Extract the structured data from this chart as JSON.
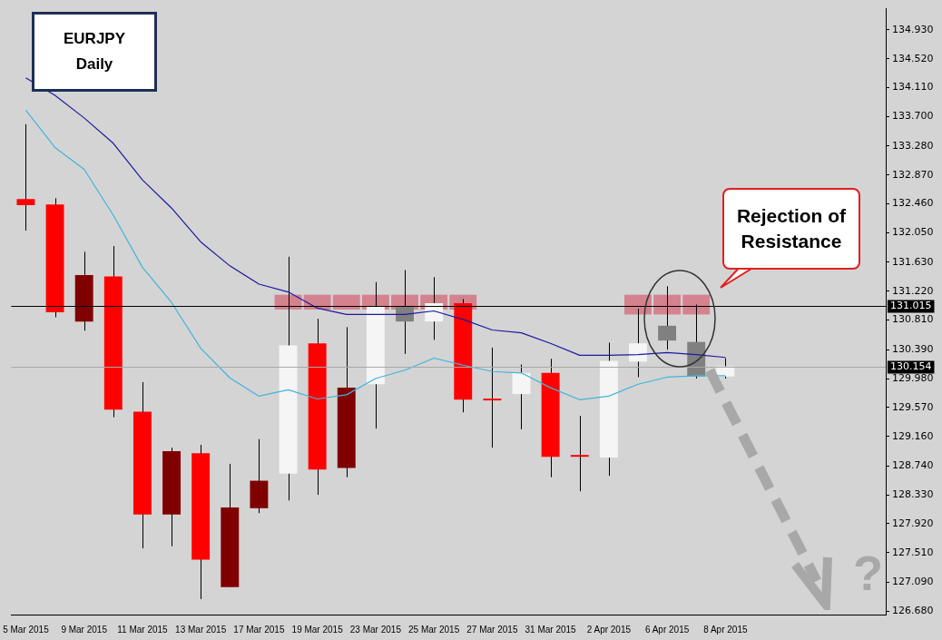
{
  "chart_data": {
    "type": "candlestick",
    "title": "EURJPY",
    "subtitle": "Daily",
    "categories": [
      "5 Mar 2015",
      null,
      "9 Mar 2015",
      null,
      "11 Mar 2015",
      null,
      "13 Mar 2015",
      null,
      "17 Mar 2015",
      null,
      "19 Mar 2015",
      null,
      "23 Mar 2015",
      null,
      "25 Mar 2015",
      null,
      "27 Mar 2015",
      null,
      "31 Mar 2015",
      null,
      "2 Apr 2015",
      null,
      "6 Apr 2015",
      null,
      "8 Apr 2015",
      null,
      null,
      null,
      null,
      null
    ],
    "ohlc": [
      [
        132.53,
        133.59,
        132.08,
        132.44
      ],
      [
        132.45,
        132.54,
        130.85,
        130.92
      ],
      [
        130.79,
        131.78,
        130.66,
        131.45
      ],
      [
        131.43,
        131.86,
        129.43,
        129.54
      ],
      [
        129.51,
        129.93,
        127.57,
        128.05
      ],
      [
        128.05,
        129.0,
        127.6,
        128.95
      ],
      [
        128.92,
        129.04,
        126.85,
        127.41
      ],
      [
        127.02,
        128.77,
        127.02,
        128.15
      ],
      [
        128.14,
        129.12,
        128.07,
        128.53
      ],
      [
        128.63,
        131.71,
        128.25,
        130.45
      ],
      [
        130.48,
        130.83,
        128.33,
        128.69
      ],
      [
        128.71,
        130.71,
        128.58,
        129.85
      ],
      [
        129.9,
        131.35,
        129.27,
        131.0
      ],
      [
        131.01,
        131.52,
        130.33,
        130.79
      ],
      [
        130.79,
        131.42,
        130.53,
        131.05
      ],
      [
        131.05,
        131.11,
        129.5,
        129.68
      ],
      [
        129.69,
        130.42,
        129.0,
        129.67
      ],
      [
        129.76,
        130.18,
        129.26,
        130.06
      ],
      [
        130.06,
        130.26,
        128.58,
        128.87
      ],
      [
        128.88,
        129.45,
        128.38,
        128.87
      ],
      [
        128.86,
        130.49,
        128.6,
        130.23
      ],
      [
        130.22,
        130.97,
        130.0,
        130.48
      ],
      [
        130.73,
        131.29,
        130.39,
        130.52
      ],
      [
        130.5,
        131.03,
        129.98,
        130.01
      ],
      [
        130.01,
        130.27,
        129.98,
        130.154
      ],
      null,
      null,
      null,
      null,
      null
    ],
    "colors": [
      "#ff0000",
      "#ff0000",
      "#800000",
      "#ff0000",
      "#ff0000",
      "#800000",
      "#ff0000",
      "#800000",
      "#800000",
      "#f5f5f5",
      "#ff0000",
      "#800000",
      "#f5f5f5",
      "#808080",
      "#f5f5f5",
      "#ff0000",
      "#ff0000",
      "#f5f5f5",
      "#ff0000",
      "#ff0000",
      "#f5f5f5",
      "#f5f5f5",
      "#808080",
      "#808080",
      "#f5f5f5",
      null,
      null,
      null,
      null,
      null
    ],
    "series": [
      {
        "type": "line",
        "color": "#1a1aa0",
        "values": [
          134.25,
          134.0,
          133.68,
          133.32,
          132.8,
          132.4,
          131.92,
          131.58,
          131.32,
          131.21,
          130.98,
          130.89,
          130.89,
          130.89,
          130.94,
          130.82,
          130.67,
          130.63,
          130.48,
          130.31,
          130.31,
          130.32,
          130.35,
          130.32,
          130.28,
          null,
          null,
          null,
          null,
          null
        ]
      },
      {
        "type": "line",
        "color": "#40b4dc",
        "values": [
          133.79,
          133.26,
          132.95,
          132.3,
          131.56,
          131.06,
          130.41,
          129.99,
          129.73,
          129.82,
          129.69,
          129.75,
          129.98,
          130.1,
          130.27,
          130.17,
          130.08,
          130.06,
          129.85,
          129.68,
          129.73,
          129.9,
          130.0,
          130.02,
          130.02,
          null,
          null,
          null,
          null,
          null
        ]
      },
      {
        "type": "bar",
        "color": "#d4828e",
        "values": [
          null,
          null,
          null,
          null,
          null,
          null,
          null,
          null,
          null,
          0.21,
          0.21,
          0.21,
          0.21,
          0.21,
          0.21,
          0.21,
          null,
          null,
          null,
          null,
          null,
          0.28,
          0.28,
          0.28,
          null,
          null,
          null,
          null,
          null,
          null
        ],
        "base": [
          null,
          null,
          null,
          null,
          null,
          null,
          null,
          null,
          null,
          130.96,
          130.96,
          130.96,
          130.96,
          130.96,
          130.96,
          130.96,
          null,
          null,
          null,
          null,
          null,
          130.89,
          130.89,
          130.89,
          null,
          null,
          null,
          null,
          null,
          null
        ]
      }
    ],
    "ylim": [
      126.63,
      135.23
    ],
    "yticks": [
      {
        "value": 134.93,
        "label": "134.930"
      },
      {
        "value": 134.52,
        "label": "134.520"
      },
      {
        "value": 134.11,
        "label": "134.110"
      },
      {
        "value": 133.7,
        "label": "133.700"
      },
      {
        "value": 133.28,
        "label": "133.280"
      },
      {
        "value": 132.87,
        "label": "132.870"
      },
      {
        "value": 132.46,
        "label": "132.460"
      },
      {
        "value": 132.05,
        "label": "132.050"
      },
      {
        "value": 131.63,
        "label": "131.630"
      },
      {
        "value": 131.22,
        "label": "131.220"
      },
      {
        "value": 130.81,
        "label": "130.810"
      },
      {
        "value": 130.39,
        "label": "130.390"
      },
      {
        "value": 129.98,
        "label": "129.980"
      },
      {
        "value": 129.57,
        "label": "129.570"
      },
      {
        "value": 129.16,
        "label": "129.160"
      },
      {
        "value": 128.74,
        "label": "128.740"
      },
      {
        "value": 128.33,
        "label": "128.330"
      },
      {
        "value": 127.92,
        "label": "127.920"
      },
      {
        "value": 127.51,
        "label": "127.510"
      },
      {
        "value": 127.09,
        "label": "127.090"
      },
      {
        "value": 126.68,
        "label": "126.680"
      }
    ],
    "ref_lines": [
      {
        "axis": "y",
        "value": 131.015,
        "label": "131.015",
        "color": "#000000"
      },
      {
        "axis": "y",
        "value": 130.154,
        "label": "130.154",
        "color": "#a8a8a8"
      }
    ],
    "annotations": [
      "Rejection of Resistance",
      "?"
    ],
    "legend": false
  }
}
